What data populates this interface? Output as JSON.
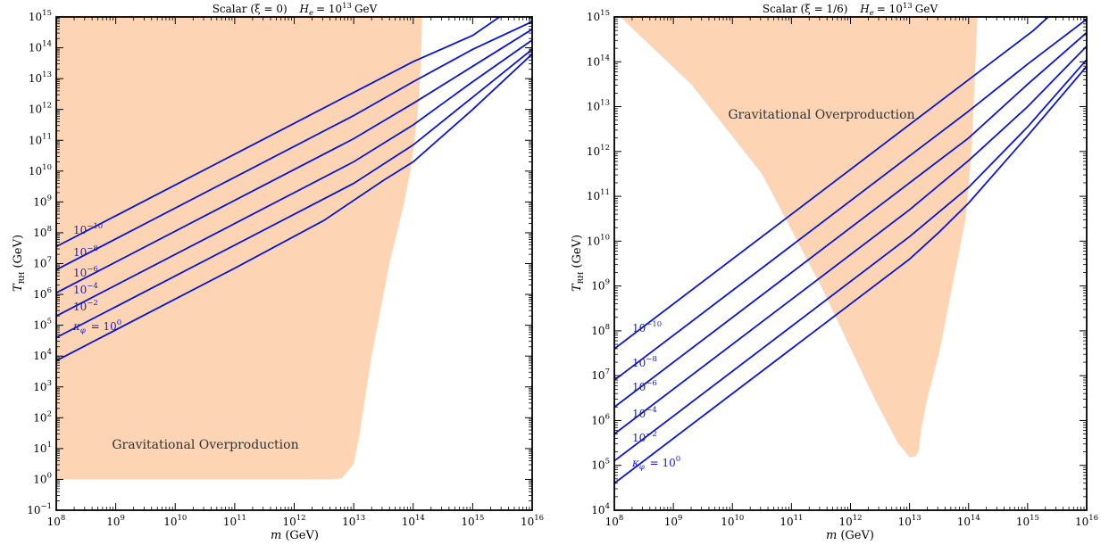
{
  "chart_data": [
    {
      "type": "line",
      "title": "Scalar (ξ = 0)   H_e = 10^13 GeV",
      "title_main": "Scalar (ξ = 0)",
      "title_h_label": "H",
      "title_h_sub": "e",
      "title_h_base": "= 10",
      "title_h_exp": "13",
      "title_h_unit": "GeV",
      "xlabel_var": "m",
      "xlabel_unit": "(GeV)",
      "ylabel_var": "T",
      "ylabel_sub": "RH",
      "ylabel_unit": "(GeV)",
      "xscale": "log",
      "yscale": "log",
      "xlim": [
        100000000.0,
        1e+16
      ],
      "ylim": [
        0.1,
        1000000000000000.0
      ],
      "x_tick_exponents": [
        8,
        9,
        10,
        11,
        12,
        13,
        14,
        15,
        16
      ],
      "y_tick_exponents": [
        -1,
        0,
        1,
        2,
        3,
        4,
        5,
        6,
        7,
        8,
        9,
        10,
        11,
        12,
        13,
        14,
        15
      ],
      "region": {
        "label": "Gravitational Overproduction",
        "color": "#fdd5b4",
        "boundary_log": [
          [
            8,
            0
          ],
          [
            12.5,
            0
          ],
          [
            12.8,
            0.03
          ],
          [
            13.0,
            0.5
          ],
          [
            13.1,
            1.5
          ],
          [
            13.3,
            4
          ],
          [
            13.6,
            7
          ],
          [
            13.85,
            9
          ],
          [
            13.98,
            10.3
          ],
          [
            14.08,
            12
          ],
          [
            14.13,
            13.5
          ],
          [
            14.15,
            15
          ],
          [
            8,
            15
          ]
        ]
      },
      "line_color": "#0a14d6",
      "series": [
        {
          "name": "10^-10",
          "base": "10",
          "exp": "−10",
          "points_log": [
            [
              8,
              7.55
            ],
            [
              11,
              10.55
            ],
            [
              13,
              12.55
            ],
            [
              14,
              13.55
            ],
            [
              15,
              14.4
            ],
            [
              15.45,
              15
            ]
          ]
        },
        {
          "name": "10^-8",
          "base": "10",
          "exp": "−8",
          "points_log": [
            [
              8,
              6.8
            ],
            [
              11,
              9.8
            ],
            [
              13,
              11.8
            ],
            [
              14,
              12.9
            ],
            [
              15,
              13.95
            ],
            [
              16,
              14.85
            ]
          ]
        },
        {
          "name": "10^-6",
          "base": "10",
          "exp": "−6",
          "points_log": [
            [
              8,
              6.05
            ],
            [
              11,
              9.05
            ],
            [
              13,
              11.05
            ],
            [
              14,
              12.2
            ],
            [
              15,
              13.4
            ],
            [
              16,
              14.6
            ]
          ]
        },
        {
          "name": "10^-4",
          "base": "10",
          "exp": "−4",
          "points_log": [
            [
              8,
              5.3
            ],
            [
              11,
              8.3
            ],
            [
              13,
              10.3
            ],
            [
              14,
              11.5
            ],
            [
              15,
              12.9
            ],
            [
              16,
              14.25
            ]
          ]
        },
        {
          "name": "10^-2",
          "base": "10",
          "exp": "−2",
          "points_log": [
            [
              8,
              4.6
            ],
            [
              11,
              7.6
            ],
            [
              13,
              9.6
            ],
            [
              14,
              10.85
            ],
            [
              15,
              12.4
            ],
            [
              16,
              13.95
            ]
          ]
        },
        {
          "name": "κφ = 10^0",
          "prefix": "κφ = ",
          "base": "10",
          "exp": "0",
          "points_log": [
            [
              8,
              3.85
            ],
            [
              11,
              6.85
            ],
            [
              12.5,
              8.4
            ],
            [
              13.5,
              9.7
            ],
            [
              14,
              10.3
            ],
            [
              15,
              12.0
            ],
            [
              16,
              13.8
            ]
          ]
        }
      ]
    },
    {
      "type": "line",
      "title": "Scalar (ξ = 1/6)   H_e = 10^13 GeV",
      "title_main": "Scalar (ξ = 1/6)",
      "title_h_label": "H",
      "title_h_sub": "e",
      "title_h_base": "= 10",
      "title_h_exp": "13",
      "title_h_unit": "GeV",
      "xlabel_var": "m",
      "xlabel_unit": "(GeV)",
      "ylabel_var": "T",
      "ylabel_sub": "RH",
      "ylabel_unit": "(GeV)",
      "xscale": "log",
      "yscale": "log",
      "xlim": [
        100000000.0,
        1e+16
      ],
      "ylim": [
        10000.0,
        1000000000000000.0
      ],
      "x_tick_exponents": [
        8,
        9,
        10,
        11,
        12,
        13,
        14,
        15,
        16
      ],
      "y_tick_exponents": [
        4,
        5,
        6,
        7,
        8,
        9,
        10,
        11,
        12,
        13,
        14,
        15
      ],
      "region": {
        "label": "Gravitational Overproduction",
        "color": "#fdd5b4",
        "boundary_log": [
          [
            8.1,
            15
          ],
          [
            14.15,
            15
          ],
          [
            14.1,
            13.5
          ],
          [
            14.05,
            12
          ],
          [
            13.95,
            10.5
          ],
          [
            13.5,
            7.5
          ],
          [
            13.3,
            6.5
          ],
          [
            13.2,
            5.8
          ],
          [
            13.15,
            5.3
          ],
          [
            13.1,
            5.2
          ],
          [
            13.0,
            5.18
          ],
          [
            12.8,
            5.5
          ],
          [
            12.4,
            6.5
          ],
          [
            11.5,
            9
          ],
          [
            10.5,
            11.5
          ],
          [
            9.3,
            13.5
          ],
          [
            8.1,
            15
          ]
        ]
      },
      "line_color": "#0a14d6",
      "series": [
        {
          "name": "10^-10",
          "base": "10",
          "exp": "−10",
          "points_log": [
            [
              8,
              7.6
            ],
            [
              11,
              10.6
            ],
            [
              13,
              12.6
            ],
            [
              14.3,
              13.9
            ],
            [
              15.1,
              14.7
            ],
            [
              15.35,
              15
            ]
          ]
        },
        {
          "name": "10^-8",
          "base": "10",
          "exp": "−8",
          "points_log": [
            [
              8,
              6.9
            ],
            [
              11,
              9.9
            ],
            [
              13,
              11.9
            ],
            [
              14,
              12.9
            ],
            [
              15,
              13.95
            ],
            [
              16,
              14.95
            ]
          ]
        },
        {
          "name": "10^-6",
          "base": "10",
          "exp": "−6",
          "points_log": [
            [
              8,
              6.3
            ],
            [
              11,
              9.3
            ],
            [
              13,
              11.3
            ],
            [
              14,
              12.3
            ],
            [
              15,
              13.5
            ],
            [
              16,
              14.65
            ]
          ]
        },
        {
          "name": "10^-4",
          "base": "10",
          "exp": "−4",
          "points_log": [
            [
              8,
              5.7
            ],
            [
              11,
              8.7
            ],
            [
              13,
              10.7
            ],
            [
              14,
              11.8
            ],
            [
              15,
              13.0
            ],
            [
              16,
              14.35
            ]
          ]
        },
        {
          "name": "10^-2",
          "base": "10",
          "exp": "−2",
          "points_log": [
            [
              8,
              5.1
            ],
            [
              11,
              8.1
            ],
            [
              13,
              10.1
            ],
            [
              14,
              11.2
            ],
            [
              15,
              12.55
            ],
            [
              16,
              14.05
            ]
          ]
        },
        {
          "name": "κφ = 10^0",
          "prefix": "κφ = ",
          "base": "10",
          "exp": "0",
          "points_log": [
            [
              8,
              4.6
            ],
            [
              11,
              7.6
            ],
            [
              13,
              9.6
            ],
            [
              13.5,
              10.2
            ],
            [
              14,
              10.85
            ],
            [
              15,
              12.35
            ],
            [
              16,
              13.9
            ]
          ]
        }
      ]
    }
  ]
}
